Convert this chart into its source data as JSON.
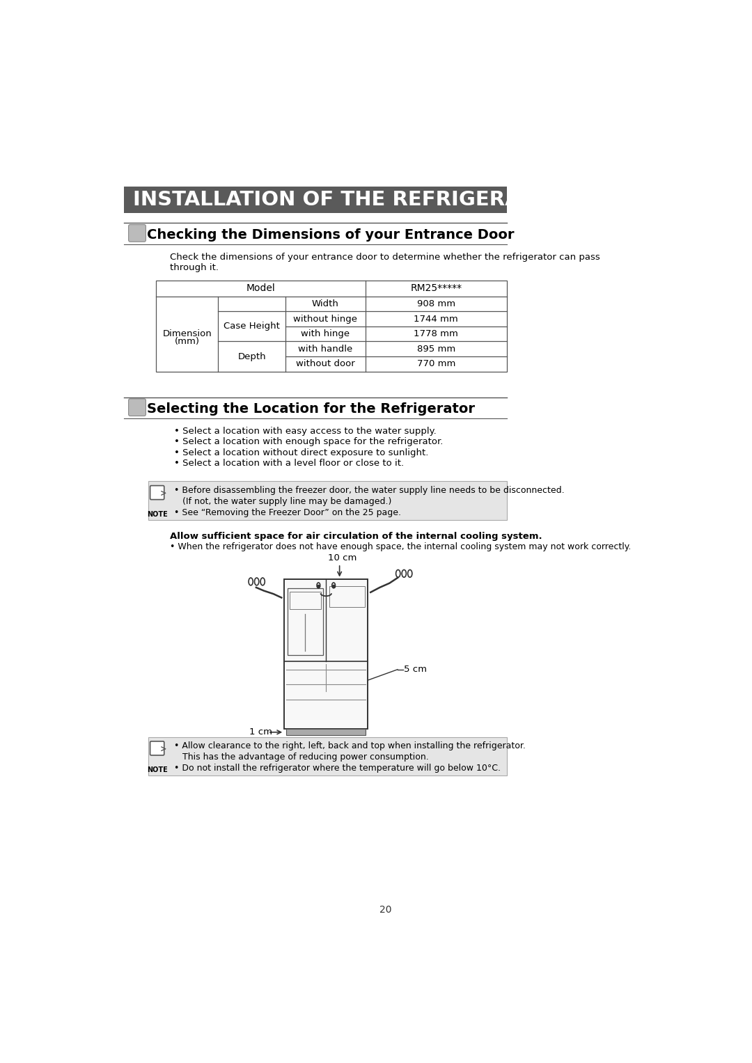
{
  "title": "INSTALLATION OF THE REFRIGERATOR",
  "title_bg": "#5a5a5a",
  "title_text_color": "#ffffff",
  "section1_title": "Checking the Dimensions of your Entrance Door",
  "section1_intro_line1": "Check the dimensions of your entrance door to determine whether the refrigerator can pass",
  "section1_intro_line2": "through it.",
  "table_model": "Model",
  "table_model_value": "RM25*****",
  "dim_label_line1": "Dimension",
  "dim_label_line2": "(mm)",
  "case_height": "Case Height",
  "depth": "Depth",
  "col3_labels": [
    "Width",
    "without hinge",
    "with hinge",
    "with handle",
    "without door"
  ],
  "values": [
    "908 mm",
    "1744 mm",
    "1778 mm",
    "895 mm",
    "770 mm"
  ],
  "section2_title": "Selecting the Location for the Refrigerator",
  "bullets1": [
    "Select a location with easy access to the water supply.",
    "Select a location with enough space for the refrigerator.",
    "Select a location without direct exposure to sunlight.",
    "Select a location with a level floor or close to it."
  ],
  "note1_lines": [
    "• Before disassembling the freezer door, the water supply line needs to be disconnected.",
    "   (If not, the water supply line may be damaged.)",
    "• See “Removing the Freezer Door” on the 25 page."
  ],
  "cooling_bold": "Allow sufficient space for air circulation of the internal cooling system.",
  "cooling_bullet": "• When the refrigerator does not have enough space, the internal cooling system may not work correctly.",
  "dim_10cm": "10 cm",
  "dim_1cm": "1 cm",
  "dim_5cm": "5 cm",
  "note2_lines": [
    "• Allow clearance to the right, left, back and top when installing the refrigerator.",
    "   This has the advantage of reducing power consumption.",
    "• Do not install the refrigerator where the temperature will go below 10°C."
  ],
  "page_number": "20",
  "note_bg": "#e5e5e5",
  "bg_color": "#ffffff",
  "line_color": "#555555",
  "text_color": "#000000"
}
